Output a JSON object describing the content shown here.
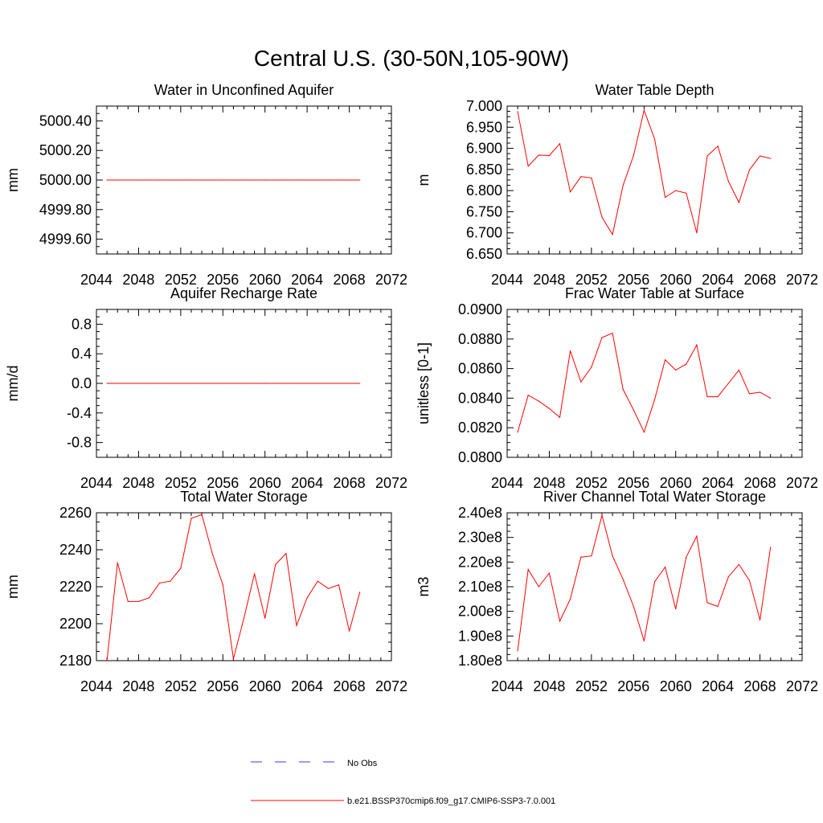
{
  "title": "Central U.S. (30-50N,105-90W)",
  "colors": {
    "series": "#ff0000",
    "obs": "#3a3aff",
    "axis": "#000000"
  },
  "legend": {
    "items": [
      {
        "label": "No Obs",
        "style": "dashed",
        "color": "#3a3aff"
      },
      {
        "label": "b.e21.BSSP370cmip6.f09_g17.CMIP6-SSP3-7.0.001",
        "style": "solid",
        "color": "#ff0000"
      }
    ]
  },
  "chart_data": [
    {
      "type": "line",
      "title": "Water in Unconfined Aquifer",
      "xlabel": "",
      "ylabel": "mm",
      "xlim": [
        2044,
        2072
      ],
      "ylim": [
        4999.5,
        5000.5
      ],
      "xticks": [
        "2044",
        "2048",
        "2052",
        "2056",
        "2060",
        "2064",
        "2068",
        "2072"
      ],
      "yticks": [
        {
          "v": 5000.4,
          "label": "5000.40"
        },
        {
          "v": 5000.2,
          "label": "5000.20"
        },
        {
          "v": 5000.0,
          "label": "5000.00"
        },
        {
          "v": 4999.8,
          "label": "4999.80"
        },
        {
          "v": 4999.6,
          "label": "4999.60"
        }
      ],
      "x": [
        2045,
        2046,
        2047,
        2048,
        2049,
        2050,
        2051,
        2052,
        2053,
        2054,
        2055,
        2056,
        2057,
        2058,
        2059,
        2060,
        2061,
        2062,
        2063,
        2064,
        2065,
        2066,
        2067,
        2068,
        2069
      ],
      "values": [
        5000,
        5000,
        5000,
        5000,
        5000,
        5000,
        5000,
        5000,
        5000,
        5000,
        5000,
        5000,
        5000,
        5000,
        5000,
        5000,
        5000,
        5000,
        5000,
        5000,
        5000,
        5000,
        5000,
        5000,
        5000
      ]
    },
    {
      "type": "line",
      "title": "Water Table Depth",
      "xlabel": "",
      "ylabel": "m",
      "xlim": [
        2044,
        2072
      ],
      "ylim": [
        6.65,
        7.0
      ],
      "xticks": [
        "2044",
        "2048",
        "2052",
        "2056",
        "2060",
        "2064",
        "2068",
        "2072"
      ],
      "yticks": [
        {
          "v": 7.0,
          "label": "7.000"
        },
        {
          "v": 6.95,
          "label": "6.950"
        },
        {
          "v": 6.9,
          "label": "6.900"
        },
        {
          "v": 6.85,
          "label": "6.850"
        },
        {
          "v": 6.8,
          "label": "6.800"
        },
        {
          "v": 6.75,
          "label": "6.750"
        },
        {
          "v": 6.7,
          "label": "6.700"
        },
        {
          "v": 6.65,
          "label": "6.650"
        }
      ],
      "x": [
        2045,
        2046,
        2047,
        2048,
        2049,
        2050,
        2051,
        2052,
        2053,
        2054,
        2055,
        2056,
        2057,
        2058,
        2059,
        2060,
        2061,
        2062,
        2063,
        2064,
        2065,
        2066,
        2067,
        2068,
        2069
      ],
      "values": [
        6.987,
        6.858,
        6.884,
        6.883,
        6.911,
        6.797,
        6.833,
        6.83,
        6.737,
        6.696,
        6.812,
        6.883,
        6.99,
        6.922,
        6.784,
        6.8,
        6.794,
        6.7,
        6.882,
        6.905,
        6.822,
        6.772,
        6.849,
        6.882,
        6.876
      ]
    },
    {
      "type": "line",
      "title": "Aquifer Recharge Rate",
      "xlabel": "",
      "ylabel": "mm/d",
      "xlim": [
        2044,
        2072
      ],
      "ylim": [
        -1.0,
        1.0
      ],
      "xticks": [
        "2044",
        "2048",
        "2052",
        "2056",
        "2060",
        "2064",
        "2068",
        "2072"
      ],
      "yticks": [
        {
          "v": 0.8,
          "label": "0.8"
        },
        {
          "v": 0.4,
          "label": "0.4"
        },
        {
          "v": 0.0,
          "label": "0.0"
        },
        {
          "v": -0.4,
          "label": "-0.4"
        },
        {
          "v": -0.8,
          "label": "-0.8"
        }
      ],
      "x": [
        2045,
        2046,
        2047,
        2048,
        2049,
        2050,
        2051,
        2052,
        2053,
        2054,
        2055,
        2056,
        2057,
        2058,
        2059,
        2060,
        2061,
        2062,
        2063,
        2064,
        2065,
        2066,
        2067,
        2068,
        2069
      ],
      "values": [
        0,
        0,
        0,
        0,
        0,
        0,
        0,
        0,
        0,
        0,
        0,
        0,
        0,
        0,
        0,
        0,
        0,
        0,
        0,
        0,
        0,
        0,
        0,
        0,
        0
      ]
    },
    {
      "type": "line",
      "title": "Frac Water Table at Surface",
      "xlabel": "",
      "ylabel": "unitless [0-1]",
      "xlim": [
        2044,
        2072
      ],
      "ylim": [
        0.08,
        0.09
      ],
      "xticks": [
        "2044",
        "2048",
        "2052",
        "2056",
        "2060",
        "2064",
        "2068",
        "2072"
      ],
      "yticks": [
        {
          "v": 0.09,
          "label": "0.0900"
        },
        {
          "v": 0.088,
          "label": "0.0880"
        },
        {
          "v": 0.086,
          "label": "0.0860"
        },
        {
          "v": 0.084,
          "label": "0.0840"
        },
        {
          "v": 0.082,
          "label": "0.0820"
        },
        {
          "v": 0.08,
          "label": "0.0800"
        }
      ],
      "x": [
        2045,
        2046,
        2047,
        2048,
        2049,
        2050,
        2051,
        2052,
        2053,
        2054,
        2055,
        2056,
        2057,
        2058,
        2059,
        2060,
        2061,
        2062,
        2063,
        2064,
        2065,
        2066,
        2067,
        2068,
        2069
      ],
      "values": [
        0.0817,
        0.0842,
        0.0838,
        0.0833,
        0.0827,
        0.0872,
        0.0851,
        0.0861,
        0.0881,
        0.0884,
        0.0846,
        0.0832,
        0.0817,
        0.0839,
        0.0866,
        0.0859,
        0.0863,
        0.0876,
        0.0841,
        0.0841,
        0.085,
        0.0859,
        0.0843,
        0.0844,
        0.084
      ]
    },
    {
      "type": "line",
      "title": "Total Water Storage",
      "xlabel": "",
      "ylabel": "mm",
      "xlim": [
        2044,
        2072
      ],
      "ylim": [
        2180,
        2260
      ],
      "xticks": [
        "2044",
        "2048",
        "2052",
        "2056",
        "2060",
        "2064",
        "2068",
        "2072"
      ],
      "yticks": [
        {
          "v": 2260,
          "label": "2260"
        },
        {
          "v": 2240,
          "label": "2240"
        },
        {
          "v": 2220,
          "label": "2220"
        },
        {
          "v": 2200,
          "label": "2200"
        },
        {
          "v": 2180,
          "label": "2180"
        }
      ],
      "x": [
        2045,
        2046,
        2047,
        2048,
        2049,
        2050,
        2051,
        2052,
        2053,
        2054,
        2055,
        2056,
        2057,
        2058,
        2059,
        2060,
        2061,
        2062,
        2063,
        2064,
        2065,
        2066,
        2067,
        2068,
        2069
      ],
      "values": [
        2180,
        2233,
        2212,
        2212,
        2214,
        2222,
        2223,
        2230,
        2257,
        2259,
        2238,
        2221,
        2181,
        2203,
        2227,
        2203,
        2232,
        2238,
        2199,
        2214,
        2223,
        2219,
        2221,
        2196,
        2217
      ]
    },
    {
      "type": "line",
      "title": "River Channel Total Water Storage",
      "xlabel": "",
      "ylabel": "m3",
      "xlim": [
        2044,
        2072
      ],
      "ylim": [
        180000000.0,
        240000000.0
      ],
      "xticks": [
        "2044",
        "2048",
        "2052",
        "2056",
        "2060",
        "2064",
        "2068",
        "2072"
      ],
      "yticks": [
        {
          "v": 240000000.0,
          "label": "2.40e8"
        },
        {
          "v": 230000000.0,
          "label": "2.30e8"
        },
        {
          "v": 220000000.0,
          "label": "2.20e8"
        },
        {
          "v": 210000000.0,
          "label": "2.10e8"
        },
        {
          "v": 200000000.0,
          "label": "2.00e8"
        },
        {
          "v": 190000000.0,
          "label": "1.90e8"
        },
        {
          "v": 180000000.0,
          "label": "1.80e8"
        }
      ],
      "x": [
        2045,
        2046,
        2047,
        2048,
        2049,
        2050,
        2051,
        2052,
        2053,
        2054,
        2055,
        2056,
        2057,
        2058,
        2059,
        2060,
        2061,
        2062,
        2063,
        2064,
        2065,
        2066,
        2067,
        2068,
        2069
      ],
      "values": [
        184000000.0,
        217000000.0,
        210000000.0,
        215500000.0,
        196000000.0,
        205000000.0,
        222000000.0,
        222500000.0,
        239000000.0,
        222500000.0,
        213000000.0,
        202000000.0,
        188000000.0,
        212000000.0,
        218000000.0,
        201000000.0,
        222000000.0,
        230500000.0,
        203500000.0,
        202000000.0,
        214000000.0,
        219000000.0,
        212500000.0,
        196500000.0,
        226000000.0
      ]
    }
  ]
}
